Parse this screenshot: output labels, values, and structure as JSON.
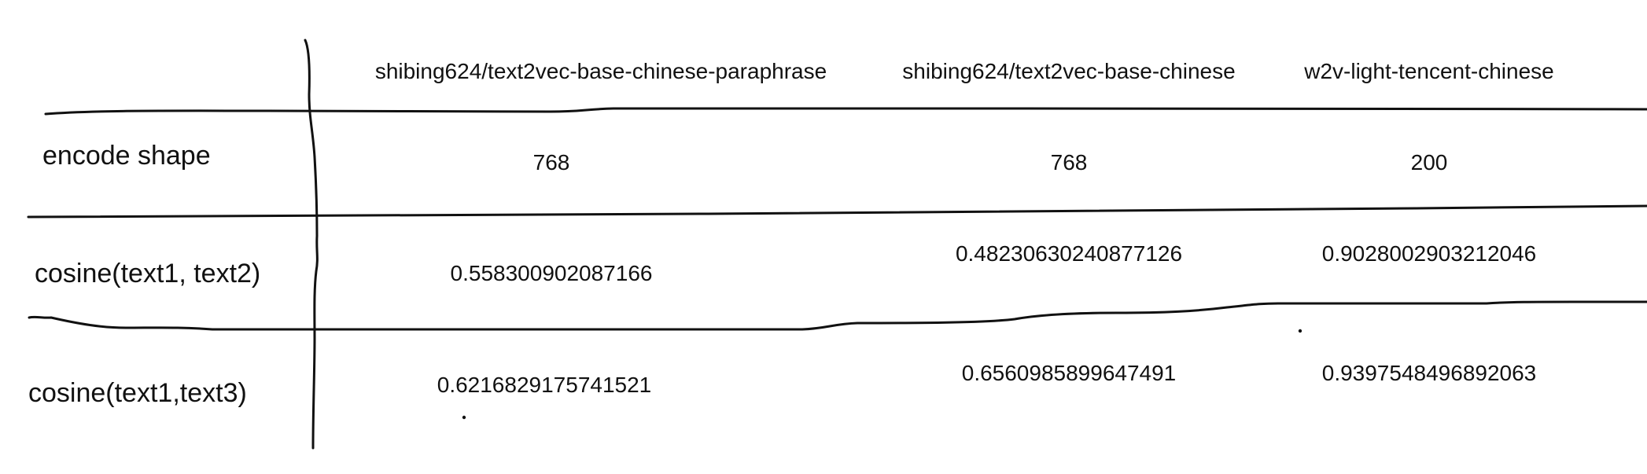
{
  "table": {
    "columns": [
      "shibing624/text2vec-base-chinese-paraphrase",
      "shibing624/text2vec-base-chinese",
      "w2v-light-tencent-chinese"
    ],
    "rows": [
      {
        "label": "encode shape",
        "values": [
          "768",
          "768",
          "200"
        ]
      },
      {
        "label": "cosine(text1, text2)",
        "values": [
          "0.558300902087166",
          "0.48230630240877126",
          "0.9028002903212046"
        ]
      },
      {
        "label": "cosine(text1,text3)",
        "values": [
          "0.6216829175741521",
          "0.6560985899647491",
          "0.9397548496892063"
        ]
      }
    ]
  }
}
